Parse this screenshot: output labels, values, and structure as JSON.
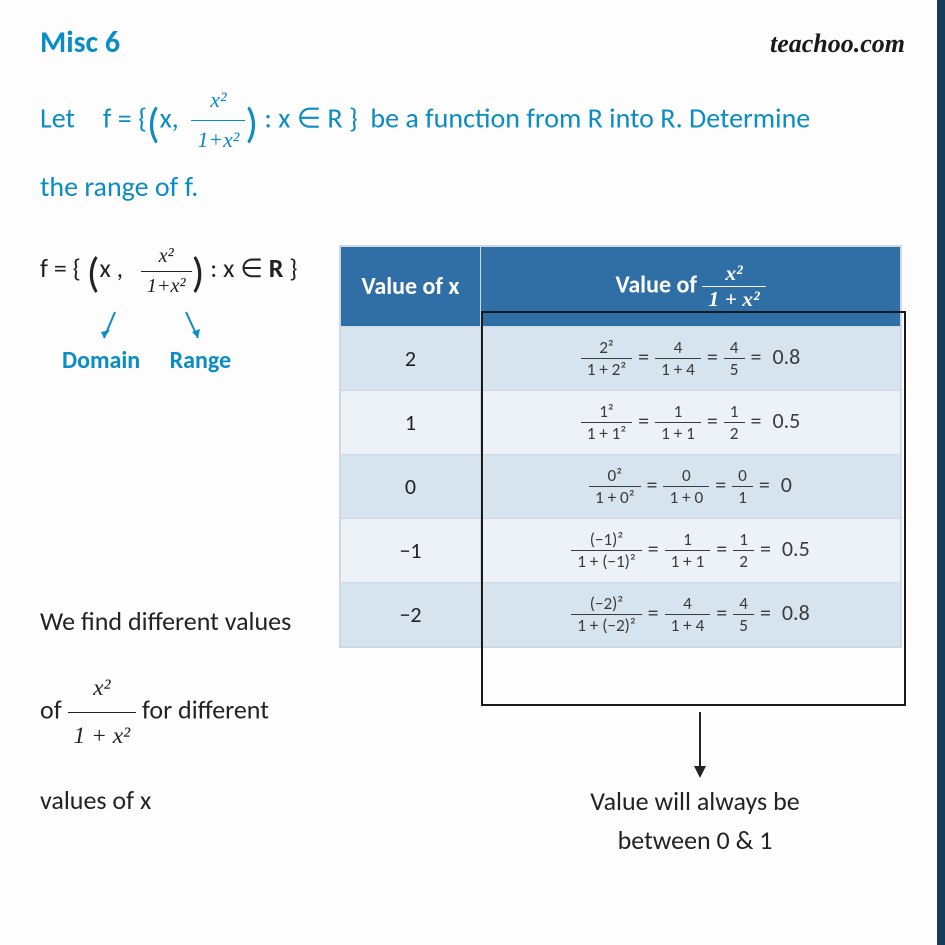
{
  "header": {
    "title": "Misc 6",
    "brand": "teachoo.com"
  },
  "question": {
    "line1_prefix": "Let f = {",
    "tuple_open": "(",
    "var": "x,",
    "frac_num": "x²",
    "frac_den": "1+x²",
    "tuple_close": ")",
    "line1_mid": " : x ∈ R }  be a function from R into R. Determine",
    "line2": "the range of f."
  },
  "fdef": {
    "prefix": "f = { ",
    "open": "(",
    "part1": "x ,",
    "num": "x²",
    "den": "1+x²",
    "close": ")",
    "suffix1": " : x ∈ ",
    "bold_R": "R",
    "suffix2": " }",
    "domain_label": "Domain",
    "range_label": "Range"
  },
  "body_text": {
    "l1": "We find different values",
    "l2a": "of ",
    "num": "x²",
    "den": "1 + x²",
    "l2b": " for different",
    "l3": "values of x"
  },
  "table": {
    "h1": "Value of x",
    "h2_prefix": "Value of ",
    "h2_num": "x²",
    "h2_den": "1 + x²",
    "rows": [
      {
        "x": "2",
        "a_num": "2²",
        "a_den": "1 + 2²",
        "b_num": "4",
        "b_den": "1 + 4",
        "c_num": "4",
        "c_den": "5",
        "res": "0.8"
      },
      {
        "x": "1",
        "a_num": "1²",
        "a_den": "1 + 1²",
        "b_num": "1",
        "b_den": "1 + 1",
        "c_num": "1",
        "c_den": "2",
        "res": "0.5"
      },
      {
        "x": "0",
        "a_num": "0²",
        "a_den": "1 + 0²",
        "b_num": "0",
        "b_den": "1 + 0",
        "c_num": "0",
        "c_den": "1",
        "res": "0"
      },
      {
        "x": "−1",
        "a_num": "(−1)²",
        "a_den": "1 + (−1)²",
        "b_num": "1",
        "b_den": "1 + 1",
        "c_num": "1",
        "c_den": "2",
        "res": "0.5"
      },
      {
        "x": "−2",
        "a_num": "(−2)²",
        "a_den": "1 + (−2)²",
        "b_num": "4",
        "b_den": "1 + 4",
        "c_num": "4",
        "c_den": "5",
        "res": "0.8"
      }
    ]
  },
  "caption": {
    "l1": "Value will always be",
    "l2": "between 0 & 1"
  },
  "colors": {
    "accent": "#0a8cc4",
    "table_header": "#2f6fa6",
    "row_odd": "#d6e4f0",
    "row_even": "#ecf2f8",
    "side_bar": "#1a3a5c"
  }
}
